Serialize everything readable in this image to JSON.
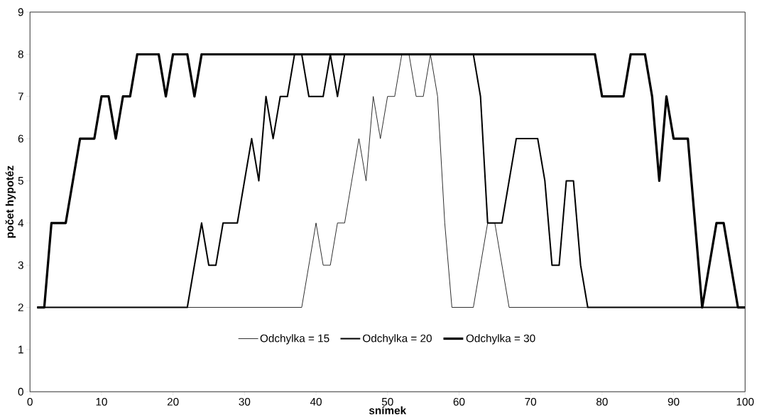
{
  "chart_data": {
    "type": "line",
    "xlabel": "snímek",
    "ylabel": "počet hypotéz",
    "x": [
      1,
      2,
      3,
      4,
      5,
      6,
      7,
      8,
      9,
      10,
      11,
      12,
      13,
      14,
      15,
      16,
      17,
      18,
      19,
      20,
      21,
      22,
      23,
      24,
      25,
      26,
      27,
      28,
      29,
      30,
      31,
      32,
      33,
      34,
      35,
      36,
      37,
      38,
      39,
      40,
      41,
      42,
      43,
      44,
      45,
      46,
      47,
      48,
      49,
      50,
      51,
      52,
      53,
      54,
      55,
      56,
      57,
      58,
      59,
      60,
      61,
      62,
      63,
      64,
      65,
      66,
      67,
      68,
      69,
      70,
      71,
      72,
      73,
      74,
      75,
      76,
      77,
      78,
      79,
      80,
      81,
      82,
      83,
      84,
      85,
      86,
      87,
      88,
      89,
      90,
      91,
      92,
      93,
      94,
      95,
      96,
      97,
      98,
      99,
      100
    ],
    "series": [
      {
        "name": "Odchylka = 15",
        "color": "#000000",
        "values": [
          2,
          2,
          2,
          2,
          2,
          2,
          2,
          2,
          2,
          2,
          2,
          2,
          2,
          2,
          2,
          2,
          2,
          2,
          2,
          2,
          2,
          2,
          2,
          2,
          2,
          2,
          2,
          2,
          2,
          2,
          2,
          2,
          2,
          2,
          2,
          2,
          2,
          2,
          3,
          4,
          3,
          3,
          4,
          4,
          5,
          6,
          5,
          7,
          6,
          7,
          7,
          8,
          8,
          7,
          7,
          8,
          7,
          4,
          2,
          2,
          2,
          2,
          3,
          4,
          4,
          3,
          2,
          2,
          2,
          2,
          2,
          2,
          2,
          2,
          2,
          2,
          2,
          2,
          2,
          2,
          2,
          2,
          2,
          2,
          2,
          2,
          2,
          2,
          2,
          2,
          2,
          2,
          2,
          2,
          2,
          2,
          2,
          2,
          2,
          2
        ]
      },
      {
        "name": "Odchylka = 20",
        "color": "#000000",
        "values": [
          2,
          2,
          2,
          2,
          2,
          2,
          2,
          2,
          2,
          2,
          2,
          2,
          2,
          2,
          2,
          2,
          2,
          2,
          2,
          2,
          2,
          2,
          3,
          4,
          3,
          3,
          4,
          4,
          4,
          5,
          6,
          5,
          7,
          6,
          7,
          7,
          8,
          8,
          7,
          7,
          7,
          8,
          7,
          8,
          8,
          8,
          8,
          8,
          8,
          8,
          8,
          8,
          8,
          8,
          8,
          8,
          8,
          8,
          8,
          8,
          8,
          8,
          7,
          4,
          4,
          4,
          5,
          6,
          6,
          6,
          6,
          5,
          3,
          3,
          5,
          5,
          3,
          2,
          2,
          2,
          2,
          2,
          2,
          2,
          2,
          2,
          2,
          2,
          2,
          2,
          2,
          2,
          2,
          2,
          2,
          2,
          2,
          2,
          2,
          2
        ]
      },
      {
        "name": "Odchylka = 30",
        "color": "#000000",
        "values": [
          2,
          2,
          4,
          4,
          4,
          5,
          6,
          6,
          6,
          7,
          7,
          6,
          7,
          7,
          8,
          8,
          8,
          8,
          7,
          8,
          8,
          8,
          7,
          8,
          8,
          8,
          8,
          8,
          8,
          8,
          8,
          8,
          8,
          8,
          8,
          8,
          8,
          8,
          8,
          8,
          8,
          8,
          8,
          8,
          8,
          8,
          8,
          8,
          8,
          8,
          8,
          8,
          8,
          8,
          8,
          8,
          8,
          8,
          8,
          8,
          8,
          8,
          8,
          8,
          8,
          8,
          8,
          8,
          8,
          8,
          8,
          8,
          8,
          8,
          8,
          8,
          8,
          8,
          8,
          7,
          7,
          7,
          7,
          8,
          8,
          8,
          7,
          5,
          7,
          6,
          6,
          6,
          4,
          2,
          3,
          4,
          4,
          3,
          2,
          2
        ]
      }
    ],
    "xlim": [
      0,
      100
    ],
    "xticks": [
      0,
      10,
      20,
      30,
      40,
      50,
      60,
      70,
      80,
      90,
      100
    ],
    "ylim": [
      0,
      9
    ],
    "yticks": [
      0,
      1,
      2,
      3,
      4,
      5,
      6,
      7,
      8,
      9
    ],
    "grid": false,
    "legend": "bottom",
    "marker": "none",
    "line_style": "solid"
  }
}
